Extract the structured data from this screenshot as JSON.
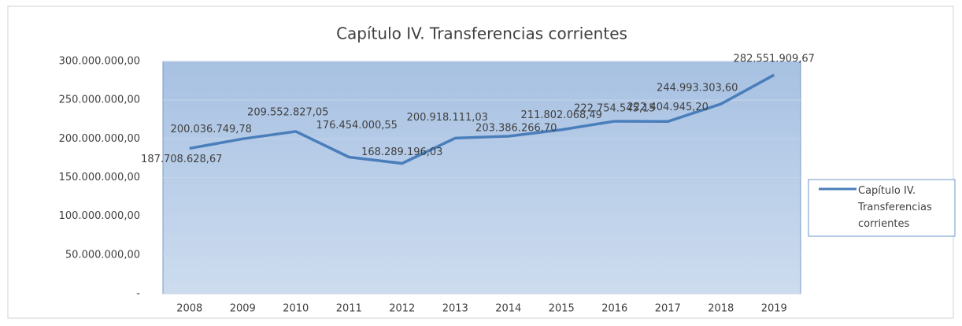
{
  "chart_data": {
    "type": "line",
    "title": "Capítulo IV. Transferencias corrientes",
    "categories": [
      "2008",
      "2009",
      "2010",
      "2011",
      "2012",
      "2013",
      "2014",
      "2015",
      "2016",
      "2017",
      "2018",
      "2019"
    ],
    "series": [
      {
        "name": "Capítulo IV. Transferencias corrientes",
        "color": "#4a7ebb",
        "values": [
          187708628.67,
          200036749.78,
          209552827.05,
          176454000.55,
          168289196.03,
          200918111.03,
          203386266.7,
          211802068.49,
          222754545.15,
          222404945.2,
          244993303.6,
          282551909.67
        ],
        "value_labels": [
          "187.708.628,67",
          "200.036.749,78",
          "209.552.827,05",
          "176.454.000,55",
          "168.289.196,03",
          "200.918.111,03",
          "203.386.266,70",
          "211.802.068,49",
          "222.754.545,15",
          "222.404.945,20",
          "244.993.303,60",
          "282.551.909,67"
        ]
      }
    ],
    "ylim": [
      0,
      300000000
    ],
    "yticks": [
      {
        "value": 0,
        "label": "-"
      },
      {
        "value": 50000000,
        "label": "50.000.000,00"
      },
      {
        "value": 100000000,
        "label": "100.000.000,00"
      },
      {
        "value": 150000000,
        "label": "150.000.000,00"
      },
      {
        "value": 200000000,
        "label": "200.000.000,00"
      },
      {
        "value": 250000000,
        "label": "250.000.000,00"
      },
      {
        "value": 300000000,
        "label": "300.000.000,00"
      }
    ],
    "grid": true,
    "legend": "right"
  }
}
